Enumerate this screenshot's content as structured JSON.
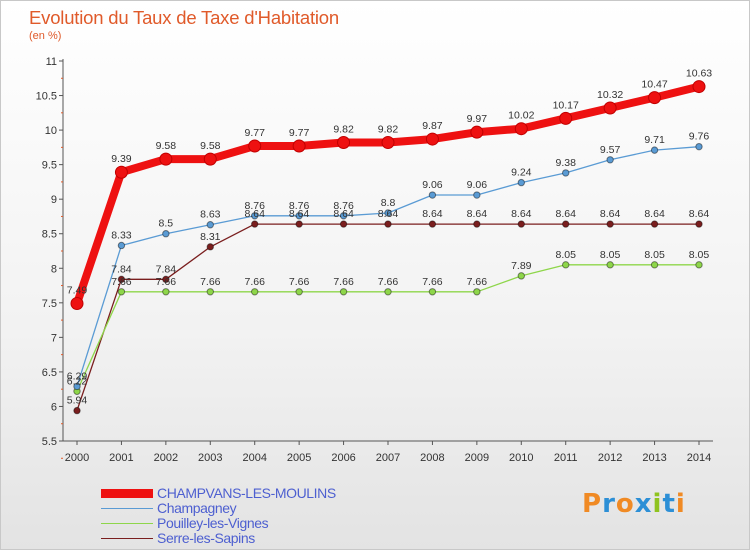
{
  "title": "Evolution du Taux de Taxe d'Habitation",
  "subtitle": "(en %)",
  "logo": "Proxiti",
  "chart_data": {
    "type": "line",
    "x": [
      2000,
      2001,
      2002,
      2003,
      2004,
      2005,
      2006,
      2007,
      2008,
      2009,
      2010,
      2011,
      2012,
      2013,
      2014
    ],
    "ylim": [
      5.5,
      11
    ],
    "yticks": [
      "5.5",
      "6",
      "6.5",
      "7",
      "7.5",
      "8",
      "8.5",
      "9",
      "9.5",
      "10",
      "10.5",
      "11"
    ],
    "grid": false,
    "legend_position": "bottom-left",
    "series": [
      {
        "name": "CHAMPVANS-LES-MOULINS",
        "color": "#ee1111",
        "values": [
          7.49,
          9.39,
          9.58,
          9.58,
          9.77,
          9.77,
          9.82,
          9.82,
          9.87,
          9.97,
          10.02,
          10.17,
          10.32,
          10.47,
          10.63
        ],
        "labels": [
          "7.49",
          "9.39",
          "9.58",
          "9.58",
          "9.77",
          "9.77",
          "9.82",
          "9.82",
          "9.87",
          "9.97",
          "10.02",
          "10.17",
          "10.32",
          "10.47",
          "10.63"
        ]
      },
      {
        "name": "Champagney",
        "color": "#5a9bd4",
        "values": [
          6.29,
          8.33,
          8.5,
          8.63,
          8.76,
          8.76,
          8.76,
          8.8,
          9.06,
          9.06,
          9.24,
          9.38,
          9.57,
          9.71,
          9.76
        ],
        "labels": [
          "6.29",
          "8.33",
          "8.5",
          "8.63",
          "8.76",
          "8.76",
          "8.76",
          "8.8",
          "9.06",
          "9.06",
          "9.24",
          "9.38",
          "9.57",
          "9.71",
          "9.76"
        ]
      },
      {
        "name": "Pouilley-les-Vignes",
        "color": "#8ed64a",
        "values": [
          6.22,
          7.66,
          7.66,
          7.66,
          7.66,
          7.66,
          7.66,
          7.66,
          7.66,
          7.66,
          7.89,
          8.05,
          8.05,
          8.05,
          8.05
        ],
        "labels": [
          "6.22",
          "7.66",
          "7.66",
          "7.66",
          "7.66",
          "7.66",
          "7.66",
          "7.66",
          "7.66",
          "7.66",
          "7.89",
          "8.05",
          "8.05",
          "8.05",
          "8.05"
        ]
      },
      {
        "name": "Serre-les-Sapins",
        "color": "#7a1e1e",
        "values": [
          5.94,
          7.84,
          7.84,
          8.31,
          8.64,
          8.64,
          8.64,
          8.64,
          8.64,
          8.64,
          8.64,
          8.64,
          8.64,
          8.64,
          8.64
        ],
        "labels": [
          "5.94",
          "7.84",
          "7.84",
          "8.31",
          "8.64",
          "8.64",
          "8.64",
          "8.64",
          "8.64",
          "8.64",
          "8.64",
          "8.64",
          "8.64",
          "8.64",
          "8.64"
        ]
      }
    ]
  }
}
